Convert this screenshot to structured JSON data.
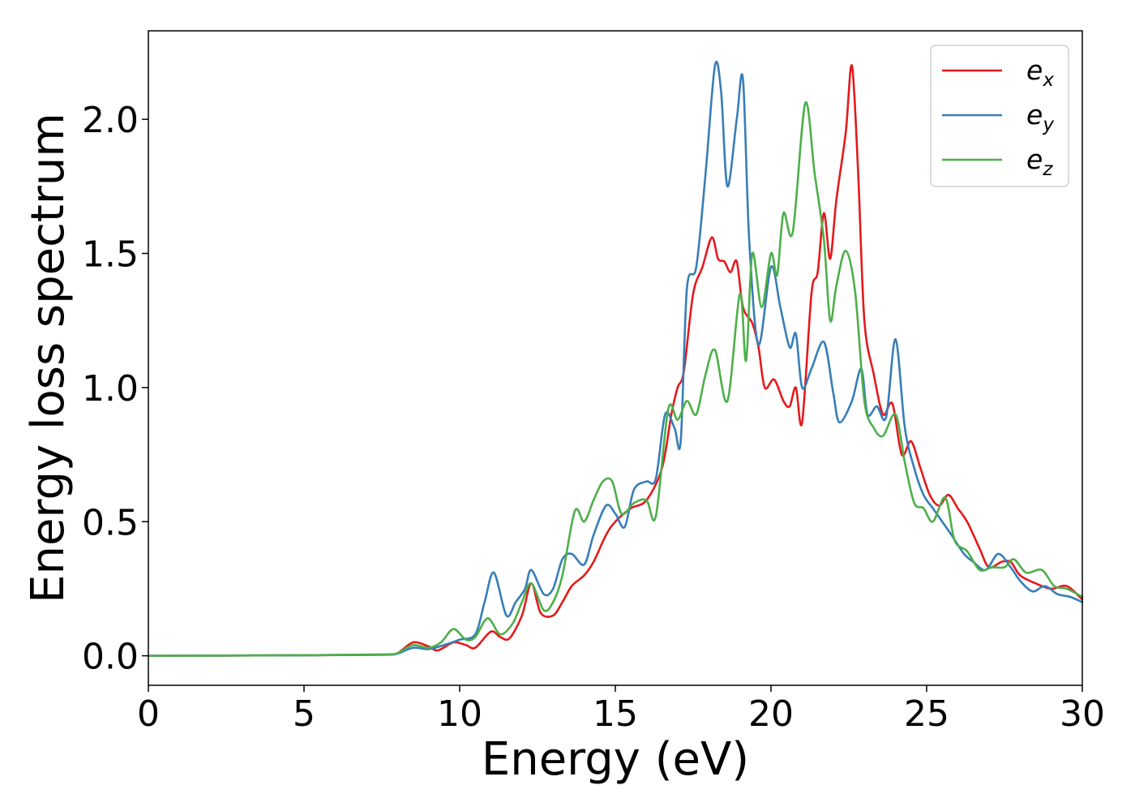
{
  "chart_data": {
    "type": "line",
    "xlabel": "Energy (eV)",
    "ylabel": "Energy loss spectrum",
    "xlim": [
      0,
      30
    ],
    "ylim": [
      -0.11,
      2.33
    ],
    "xticks": [
      0,
      5,
      10,
      15,
      20,
      25,
      30
    ],
    "xtick_labels": [
      "0",
      "5",
      "10",
      "15",
      "20",
      "25",
      "30"
    ],
    "yticks": [
      0.0,
      0.5,
      1.0,
      1.5,
      2.0
    ],
    "ytick_labels": [
      "0.0",
      "0.5",
      "1.0",
      "1.5",
      "2.0"
    ],
    "grid": false,
    "legend_position": "top-right",
    "series": [
      {
        "name": "e_x",
        "label_base": "e",
        "label_sub": "x",
        "color": "#e41a1c",
        "points": [
          [
            0,
            0
          ],
          [
            5,
            0.002
          ],
          [
            7.5,
            0.004
          ],
          [
            8,
            0.01
          ],
          [
            8.5,
            0.05
          ],
          [
            9,
            0.035
          ],
          [
            9.3,
            0.02
          ],
          [
            9.8,
            0.05
          ],
          [
            10.2,
            0.04
          ],
          [
            10.5,
            0.03
          ],
          [
            11,
            0.09
          ],
          [
            11.3,
            0.07
          ],
          [
            11.6,
            0.065
          ],
          [
            12,
            0.15
          ],
          [
            12.3,
            0.27
          ],
          [
            12.6,
            0.16
          ],
          [
            13,
            0.15
          ],
          [
            13.3,
            0.2
          ],
          [
            13.6,
            0.26
          ],
          [
            14,
            0.3
          ],
          [
            14.3,
            0.35
          ],
          [
            14.7,
            0.45
          ],
          [
            15,
            0.5
          ],
          [
            15.5,
            0.55
          ],
          [
            16,
            0.58
          ],
          [
            16.5,
            0.7
          ],
          [
            16.8,
            0.9
          ],
          [
            17,
            1.0
          ],
          [
            17.2,
            1.06
          ],
          [
            17.5,
            1.35
          ],
          [
            17.8,
            1.45
          ],
          [
            18.1,
            1.56
          ],
          [
            18.3,
            1.48
          ],
          [
            18.5,
            1.47
          ],
          [
            18.7,
            1.43
          ],
          [
            18.9,
            1.47
          ],
          [
            19.1,
            1.3
          ],
          [
            19.4,
            1.24
          ],
          [
            19.6,
            1.15
          ],
          [
            19.8,
            1.0
          ],
          [
            20.1,
            1.03
          ],
          [
            20.4,
            0.95
          ],
          [
            20.6,
            0.93
          ],
          [
            20.8,
            1.0
          ],
          [
            21,
            0.87
          ],
          [
            21.3,
            1.35
          ],
          [
            21.5,
            1.43
          ],
          [
            21.7,
            1.65
          ],
          [
            21.9,
            1.48
          ],
          [
            22.1,
            1.7
          ],
          [
            22.4,
            1.95
          ],
          [
            22.6,
            2.2
          ],
          [
            22.8,
            1.8
          ],
          [
            23,
            1.25
          ],
          [
            23.3,
            1.05
          ],
          [
            23.6,
            0.9
          ],
          [
            23.9,
            0.94
          ],
          [
            24.2,
            0.75
          ],
          [
            24.5,
            0.8
          ],
          [
            24.8,
            0.7
          ],
          [
            25.1,
            0.6
          ],
          [
            25.4,
            0.56
          ],
          [
            25.7,
            0.6
          ],
          [
            26,
            0.55
          ],
          [
            26.3,
            0.5
          ],
          [
            26.7,
            0.4
          ],
          [
            27,
            0.33
          ],
          [
            27.4,
            0.35
          ],
          [
            27.7,
            0.35
          ],
          [
            28,
            0.3
          ],
          [
            28.5,
            0.27
          ],
          [
            29,
            0.25
          ],
          [
            29.5,
            0.26
          ],
          [
            30,
            0.21
          ]
        ]
      },
      {
        "name": "e_y",
        "label_base": "e",
        "label_sub": "y",
        "color": "#377eb8",
        "points": [
          [
            0,
            0
          ],
          [
            5,
            0.002
          ],
          [
            7.5,
            0.004
          ],
          [
            8,
            0.008
          ],
          [
            8.5,
            0.03
          ],
          [
            9,
            0.025
          ],
          [
            9.5,
            0.04
          ],
          [
            10,
            0.06
          ],
          [
            10.5,
            0.08
          ],
          [
            10.8,
            0.2
          ],
          [
            11.1,
            0.31
          ],
          [
            11.5,
            0.15
          ],
          [
            11.8,
            0.2
          ],
          [
            12.1,
            0.25
          ],
          [
            12.3,
            0.32
          ],
          [
            12.7,
            0.23
          ],
          [
            13,
            0.25
          ],
          [
            13.3,
            0.36
          ],
          [
            13.6,
            0.38
          ],
          [
            14,
            0.34
          ],
          [
            14.3,
            0.45
          ],
          [
            14.7,
            0.56
          ],
          [
            15,
            0.53
          ],
          [
            15.3,
            0.48
          ],
          [
            15.6,
            0.62
          ],
          [
            16,
            0.65
          ],
          [
            16.3,
            0.66
          ],
          [
            16.6,
            0.9
          ],
          [
            16.9,
            0.85
          ],
          [
            17.1,
            0.8
          ],
          [
            17.3,
            1.37
          ],
          [
            17.6,
            1.45
          ],
          [
            17.9,
            1.8
          ],
          [
            18.2,
            2.2
          ],
          [
            18.4,
            2.1
          ],
          [
            18.6,
            1.75
          ],
          [
            18.9,
            2.0
          ],
          [
            19.1,
            2.15
          ],
          [
            19.3,
            1.55
          ],
          [
            19.6,
            1.16
          ],
          [
            20,
            1.45
          ],
          [
            20.3,
            1.3
          ],
          [
            20.6,
            1.15
          ],
          [
            20.8,
            1.2
          ],
          [
            21,
            1.0
          ],
          [
            21.3,
            1.07
          ],
          [
            21.7,
            1.17
          ],
          [
            22,
            0.98
          ],
          [
            22.2,
            0.87
          ],
          [
            22.6,
            0.95
          ],
          [
            22.9,
            1.07
          ],
          [
            23.1,
            0.9
          ],
          [
            23.4,
            0.93
          ],
          [
            23.7,
            0.89
          ],
          [
            24,
            1.18
          ],
          [
            24.3,
            0.85
          ],
          [
            24.6,
            0.7
          ],
          [
            24.9,
            0.6
          ],
          [
            25.2,
            0.55
          ],
          [
            25.5,
            0.5
          ],
          [
            25.8,
            0.45
          ],
          [
            26.2,
            0.38
          ],
          [
            26.5,
            0.35
          ],
          [
            26.9,
            0.32
          ],
          [
            27.3,
            0.38
          ],
          [
            27.7,
            0.33
          ],
          [
            28,
            0.28
          ],
          [
            28.4,
            0.24
          ],
          [
            28.8,
            0.26
          ],
          [
            29.2,
            0.23
          ],
          [
            29.6,
            0.22
          ],
          [
            30,
            0.2
          ]
        ]
      },
      {
        "name": "e_z",
        "label_base": "e",
        "label_sub": "z",
        "color": "#4daf4a",
        "points": [
          [
            0,
            0
          ],
          [
            5,
            0.002
          ],
          [
            7.5,
            0.005
          ],
          [
            8,
            0.01
          ],
          [
            8.5,
            0.04
          ],
          [
            9,
            0.03
          ],
          [
            9.4,
            0.05
          ],
          [
            9.8,
            0.1
          ],
          [
            10.2,
            0.06
          ],
          [
            10.5,
            0.07
          ],
          [
            10.9,
            0.14
          ],
          [
            11.3,
            0.08
          ],
          [
            11.7,
            0.12
          ],
          [
            12,
            0.2
          ],
          [
            12.3,
            0.27
          ],
          [
            12.7,
            0.17
          ],
          [
            13,
            0.2
          ],
          [
            13.3,
            0.3
          ],
          [
            13.7,
            0.54
          ],
          [
            14,
            0.5
          ],
          [
            14.3,
            0.58
          ],
          [
            14.6,
            0.65
          ],
          [
            14.9,
            0.65
          ],
          [
            15.2,
            0.53
          ],
          [
            15.6,
            0.57
          ],
          [
            16,
            0.58
          ],
          [
            16.3,
            0.52
          ],
          [
            16.7,
            0.92
          ],
          [
            17,
            0.88
          ],
          [
            17.3,
            0.95
          ],
          [
            17.6,
            0.9
          ],
          [
            17.9,
            1.05
          ],
          [
            18.2,
            1.14
          ],
          [
            18.6,
            0.95
          ],
          [
            19,
            1.35
          ],
          [
            19.2,
            1.1
          ],
          [
            19.4,
            1.5
          ],
          [
            19.7,
            1.3
          ],
          [
            20,
            1.5
          ],
          [
            20.2,
            1.42
          ],
          [
            20.4,
            1.65
          ],
          [
            20.7,
            1.58
          ],
          [
            21.1,
            2.06
          ],
          [
            21.4,
            1.8
          ],
          [
            21.7,
            1.55
          ],
          [
            21.9,
            1.25
          ],
          [
            22.1,
            1.38
          ],
          [
            22.4,
            1.51
          ],
          [
            22.7,
            1.36
          ],
          [
            23,
            0.95
          ],
          [
            23.3,
            0.85
          ],
          [
            23.6,
            0.82
          ],
          [
            24,
            0.9
          ],
          [
            24.3,
            0.72
          ],
          [
            24.6,
            0.57
          ],
          [
            24.9,
            0.55
          ],
          [
            25.2,
            0.5
          ],
          [
            25.6,
            0.59
          ],
          [
            25.9,
            0.43
          ],
          [
            26.3,
            0.39
          ],
          [
            26.7,
            0.32
          ],
          [
            27.1,
            0.33
          ],
          [
            27.5,
            0.33
          ],
          [
            27.8,
            0.36
          ],
          [
            28.2,
            0.31
          ],
          [
            28.7,
            0.32
          ],
          [
            29.1,
            0.26
          ],
          [
            29.5,
            0.25
          ],
          [
            30,
            0.22
          ]
        ]
      }
    ]
  }
}
